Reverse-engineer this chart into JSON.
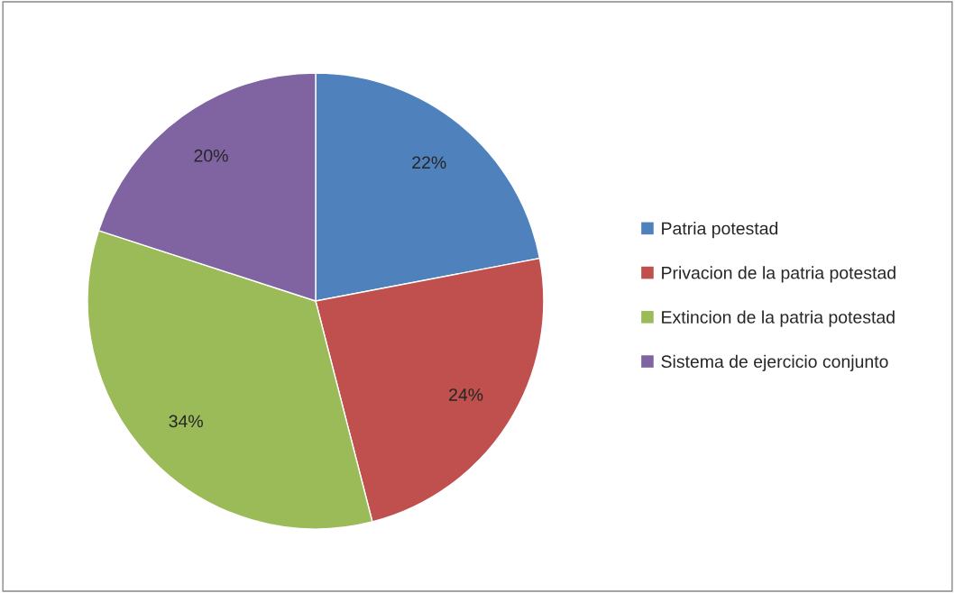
{
  "chart_data": {
    "type": "pie",
    "categories": [
      "Patria potestad",
      "Privacion de la patria potestad",
      "Extincion de la patria potestad",
      "Sistema de ejercicio conjunto"
    ],
    "values": [
      22,
      24,
      34,
      20
    ],
    "colors": [
      "#4f81bd",
      "#c0504d",
      "#9bbb59",
      "#8064a2"
    ],
    "value_labels": [
      "22%",
      "24%",
      "34%",
      "20%"
    ],
    "legend": "right"
  }
}
